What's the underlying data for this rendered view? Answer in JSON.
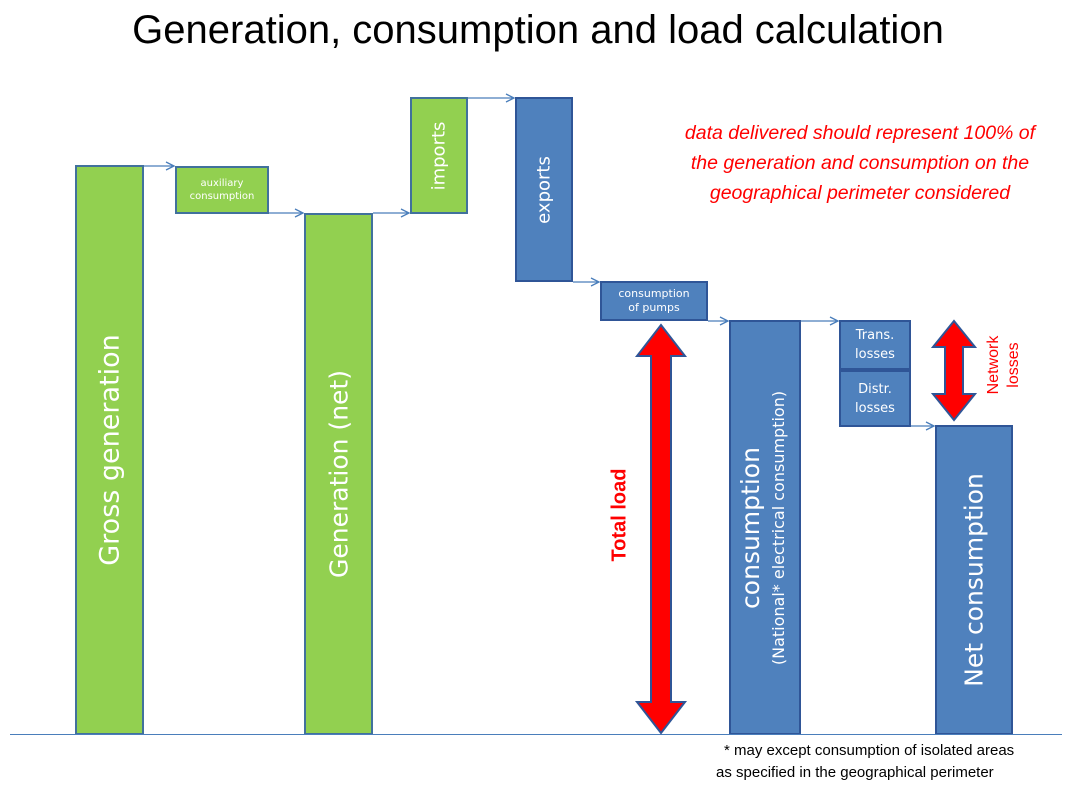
{
  "title": "Generation, consumption and load calculation",
  "note": "data delivered should represent 100% of the generation and consumption on the geographical perimeter considered",
  "footnote": {
    "line1": "* may except consumption of isolated areas",
    "line2": "as specified in the geographical perimeter"
  },
  "boxes": {
    "gross_generation": "Gross  generation",
    "auxiliary_line1": "auxiliary",
    "auxiliary_line2": "consumption",
    "generation_net": "Generation (net)",
    "imports": "imports",
    "exports": "exports",
    "pumps_line1": "consumption",
    "pumps_line2": "of pumps",
    "consumption": "consumption",
    "consumption_sub": "(National* electrical consumption)",
    "trans_line1": "Trans.",
    "trans_line2": "losses",
    "distr_line1": "Distr.",
    "distr_line2": "losses",
    "net_consumption": "Net consumption"
  },
  "labels": {
    "total_load": "Total load",
    "network_line1": "Network",
    "network_line2": "losses"
  },
  "colors": {
    "generation": "#92d050",
    "consumption": "#4f81bd",
    "highlight": "#ff0000"
  }
}
